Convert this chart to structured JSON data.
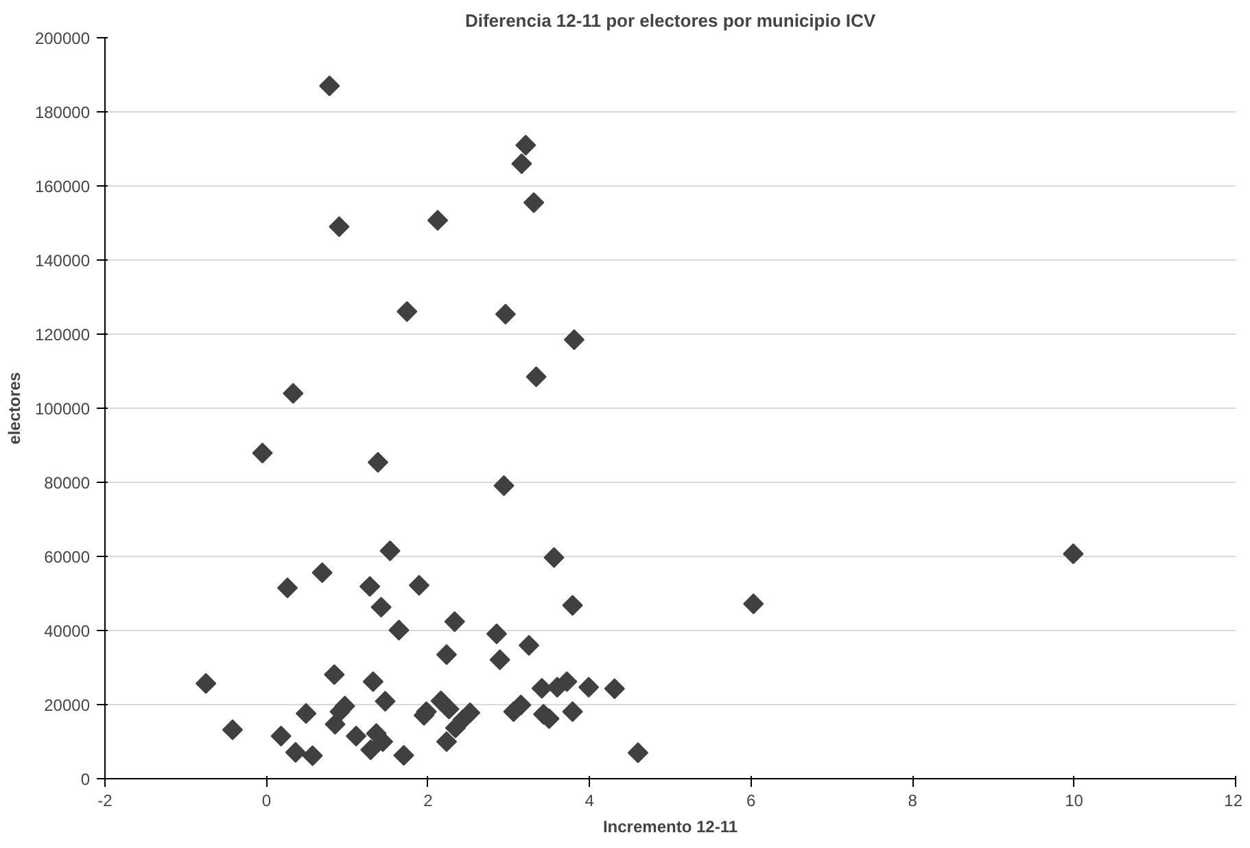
{
  "chart_data": {
    "type": "scatter",
    "title": "Diferencia 12-11 por electores por municipio ICV",
    "xlabel": "Incremento 12-11",
    "ylabel": "electores",
    "xlim": [
      -2,
      12
    ],
    "xticks": [
      -2,
      0,
      2,
      4,
      6,
      8,
      10,
      12
    ],
    "ylim": [
      0,
      200000
    ],
    "yticks": [
      0,
      20000,
      40000,
      60000,
      80000,
      100000,
      120000,
      140000,
      160000,
      180000,
      200000
    ],
    "grid": "y",
    "marker": "diamond",
    "series": [
      {
        "color": "#404040",
        "x": [
          0.78,
          3.21,
          3.16,
          0.9,
          2.12,
          3.31,
          1.74,
          2.96,
          3.81,
          3.34,
          0.33,
          -0.05,
          1.38,
          2.94,
          -0.75,
          -0.42,
          0.18,
          0.26,
          0.36,
          0.49,
          0.57,
          0.69,
          0.84,
          0.85,
          0.91,
          0.97,
          1.11,
          1.28,
          1.29,
          1.32,
          1.36,
          1.42,
          1.47,
          1.44,
          1.53,
          1.64,
          1.7,
          1.89,
          1.95,
          1.98,
          2.16,
          2.23,
          2.23,
          2.26,
          2.33,
          2.34,
          2.43,
          2.52,
          2.85,
          2.89,
          3.06,
          3.15,
          3.25,
          3.41,
          3.43,
          3.5,
          3.56,
          3.6,
          3.72,
          3.79,
          3.79,
          3.99,
          4.31,
          4.6,
          6.03,
          9.99
        ],
        "values": [
          187000,
          171000,
          166000,
          149000,
          150700,
          155500,
          126100,
          125400,
          118500,
          108500,
          104000,
          87900,
          85400,
          79100,
          25700,
          13200,
          11500,
          51500,
          7100,
          17600,
          6200,
          55600,
          28100,
          14700,
          18100,
          19600,
          11500,
          51900,
          7800,
          26200,
          12200,
          46300,
          20900,
          10000,
          61500,
          40100,
          6300,
          52200,
          17100,
          18100,
          21000,
          33500,
          10000,
          18800,
          42400,
          13700,
          15900,
          17800,
          39100,
          32100,
          18100,
          19900,
          36000,
          24400,
          17400,
          16200,
          59700,
          24700,
          26200,
          18100,
          46800,
          24700,
          24300,
          7000,
          47200,
          60700
        ]
      }
    ]
  }
}
